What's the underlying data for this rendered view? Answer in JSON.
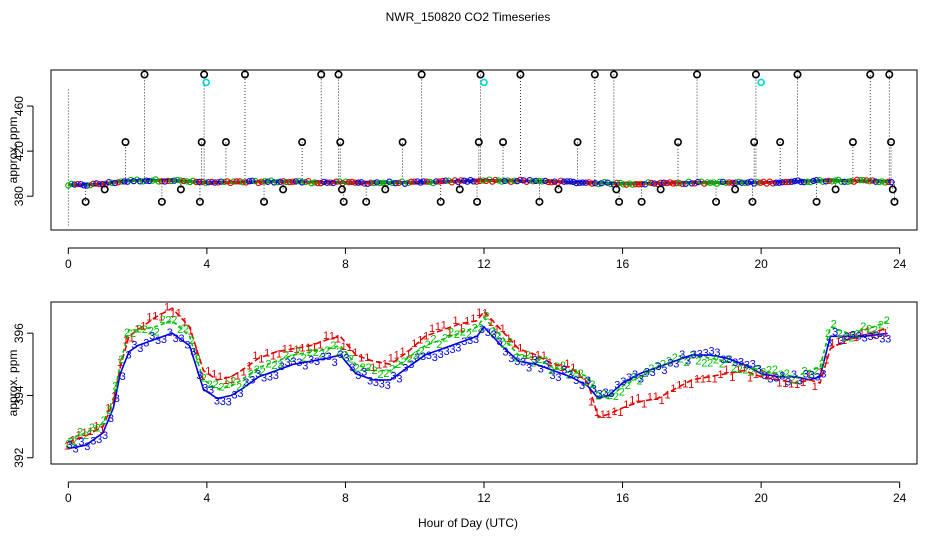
{
  "chart_data": [
    {
      "type": "scatter",
      "title": "NWR_150820  CO2 Timeseries",
      "ylabel": "approx. ppm",
      "xlabel": "",
      "xlim": [
        -0.5,
        24.5
      ],
      "ylim": [
        350,
        492
      ],
      "x_ticks": [
        0,
        4,
        8,
        12,
        16,
        20,
        24
      ],
      "y_ticks": [
        380,
        420,
        460
      ],
      "y_tick_labels": [
        "380",
        "420",
        "460"
      ],
      "baseline": {
        "x": [
          0,
          0.5,
          1,
          1.5,
          2,
          3,
          4,
          6,
          8,
          10,
          12,
          14,
          16,
          18,
          20,
          22,
          23.8
        ],
        "y": [
          390,
          390,
          391,
          393,
          394,
          394,
          392,
          393,
          392,
          392,
          394,
          393,
          391,
          392,
          392,
          394,
          393
        ]
      },
      "spikes": [
        {
          "x": 0.5,
          "y": 375
        },
        {
          "x": 1.05,
          "y": 386
        },
        {
          "x": 1.65,
          "y": 428
        },
        {
          "x": 2.2,
          "y": 488
        },
        {
          "x": 2.7,
          "y": 375
        },
        {
          "x": 3.25,
          "y": 386
        },
        {
          "x": 3.8,
          "y": 375
        },
        {
          "x": 3.85,
          "y": 428
        },
        {
          "x": 3.92,
          "y": 488
        },
        {
          "x": 4.55,
          "y": 428
        },
        {
          "x": 5.1,
          "y": 488
        },
        {
          "x": 5.65,
          "y": 375
        },
        {
          "x": 6.2,
          "y": 386
        },
        {
          "x": 6.75,
          "y": 428
        },
        {
          "x": 7.3,
          "y": 488
        },
        {
          "x": 7.8,
          "y": 488
        },
        {
          "x": 7.85,
          "y": 428
        },
        {
          "x": 7.9,
          "y": 386
        },
        {
          "x": 7.95,
          "y": 375
        },
        {
          "x": 8.6,
          "y": 375
        },
        {
          "x": 9.15,
          "y": 386
        },
        {
          "x": 9.65,
          "y": 428
        },
        {
          "x": 10.2,
          "y": 488
        },
        {
          "x": 10.75,
          "y": 375
        },
        {
          "x": 11.3,
          "y": 386
        },
        {
          "x": 11.8,
          "y": 375
        },
        {
          "x": 11.85,
          "y": 428
        },
        {
          "x": 11.9,
          "y": 488
        },
        {
          "x": 12.55,
          "y": 428
        },
        {
          "x": 13.05,
          "y": 488
        },
        {
          "x": 13.6,
          "y": 375
        },
        {
          "x": 14.15,
          "y": 386
        },
        {
          "x": 14.7,
          "y": 428
        },
        {
          "x": 15.2,
          "y": 488
        },
        {
          "x": 15.75,
          "y": 488
        },
        {
          "x": 15.82,
          "y": 386
        },
        {
          "x": 15.9,
          "y": 375
        },
        {
          "x": 16.55,
          "y": 375
        },
        {
          "x": 17.1,
          "y": 386
        },
        {
          "x": 17.6,
          "y": 428
        },
        {
          "x": 18.15,
          "y": 488
        },
        {
          "x": 18.7,
          "y": 375
        },
        {
          "x": 19.25,
          "y": 386
        },
        {
          "x": 19.75,
          "y": 375
        },
        {
          "x": 19.8,
          "y": 428
        },
        {
          "x": 19.85,
          "y": 488
        },
        {
          "x": 20.55,
          "y": 428
        },
        {
          "x": 21.05,
          "y": 488
        },
        {
          "x": 21.6,
          "y": 375
        },
        {
          "x": 22.15,
          "y": 386
        },
        {
          "x": 22.65,
          "y": 428
        },
        {
          "x": 23.15,
          "y": 488
        },
        {
          "x": 23.7,
          "y": 488
        },
        {
          "x": 23.75,
          "y": 428
        },
        {
          "x": 23.8,
          "y": 386
        },
        {
          "x": 23.85,
          "y": 375
        }
      ],
      "highlights": [
        {
          "x": 3.98,
          "y": 481
        },
        {
          "x": 12.0,
          "y": 481
        },
        {
          "x": 20.0,
          "y": 481
        }
      ]
    },
    {
      "type": "line",
      "title": "",
      "ylabel": "approx. ppm",
      "xlabel": "Hour of Day (UTC)",
      "xlim": [
        -0.5,
        24.5
      ],
      "ylim": [
        391.8,
        397.0
      ],
      "x_ticks": [
        0,
        4,
        8,
        12,
        16,
        20,
        24
      ],
      "y_ticks": [
        392,
        394,
        396
      ],
      "y_tick_labels": [
        "392",
        "394",
        "396"
      ],
      "x": [
        0,
        0.5,
        1,
        1.3,
        1.5,
        1.75,
        2,
        2.5,
        3,
        3.5,
        3.9,
        4.3,
        4.7,
        5,
        5.5,
        6,
        6.5,
        7,
        7.5,
        7.85,
        8.3,
        8.8,
        9.3,
        9.8,
        10.3,
        10.8,
        11.3,
        11.8,
        12,
        12.5,
        13,
        13.5,
        14,
        14.5,
        15,
        15.3,
        15.6,
        16,
        16.5,
        17,
        17.5,
        18,
        18.5,
        19,
        19.5,
        20,
        20.5,
        21,
        21.4,
        21.7,
        22,
        22.5,
        23,
        23.7
      ],
      "series": [
        {
          "name": "1",
          "color": "#e00000",
          "values": [
            392.5,
            392.7,
            393.0,
            393.8,
            394.9,
            395.9,
            396.1,
            396.5,
            396.8,
            396.2,
            394.8,
            394.5,
            394.6,
            394.8,
            395.2,
            395.4,
            395.5,
            395.6,
            395.8,
            395.9,
            395.3,
            395.1,
            395.0,
            395.4,
            395.9,
            396.1,
            396.3,
            396.4,
            396.7,
            396.1,
            395.5,
            395.3,
            395.0,
            394.9,
            394.4,
            393.3,
            393.4,
            393.6,
            393.8,
            393.9,
            394.2,
            394.5,
            394.6,
            394.7,
            394.8,
            394.6,
            394.5,
            394.4,
            394.5,
            394.4,
            395.5,
            395.8,
            395.9,
            396.2
          ]
        },
        {
          "name": "2",
          "color": "#00c000",
          "values": [
            392.6,
            392.8,
            393.1,
            393.9,
            395.0,
            396.1,
            396.1,
            396.2,
            396.4,
            395.9,
            394.5,
            394.2,
            394.3,
            394.5,
            394.9,
            395.1,
            395.3,
            395.4,
            395.5,
            395.6,
            395.0,
            394.8,
            394.8,
            395.2,
            395.6,
            395.8,
            396.0,
            396.2,
            396.5,
            395.9,
            395.3,
            395.2,
            394.9,
            394.8,
            394.6,
            394.0,
            393.9,
            394.3,
            394.6,
            394.9,
            395.1,
            395.3,
            395.2,
            395.1,
            395.0,
            394.8,
            394.7,
            394.6,
            394.8,
            394.9,
            396.2,
            396.0,
            396.1,
            396.4
          ]
        },
        {
          "name": "3",
          "color": "#0000e0",
          "values": [
            392.3,
            392.4,
            392.8,
            393.6,
            394.7,
            395.4,
            395.6,
            395.8,
            396.0,
            395.6,
            394.2,
            393.9,
            394.0,
            394.2,
            394.6,
            394.8,
            395.0,
            395.1,
            395.2,
            395.3,
            394.7,
            394.5,
            394.5,
            394.9,
            395.3,
            395.5,
            395.7,
            395.9,
            396.2,
            395.6,
            395.1,
            395.0,
            394.8,
            394.6,
            394.3,
            393.9,
            394.0,
            394.4,
            394.7,
            394.9,
            395.1,
            395.3,
            395.3,
            395.2,
            395.0,
            394.7,
            394.6,
            394.6,
            394.5,
            394.6,
            395.9,
            395.9,
            395.9,
            396.0
          ]
        }
      ]
    }
  ]
}
